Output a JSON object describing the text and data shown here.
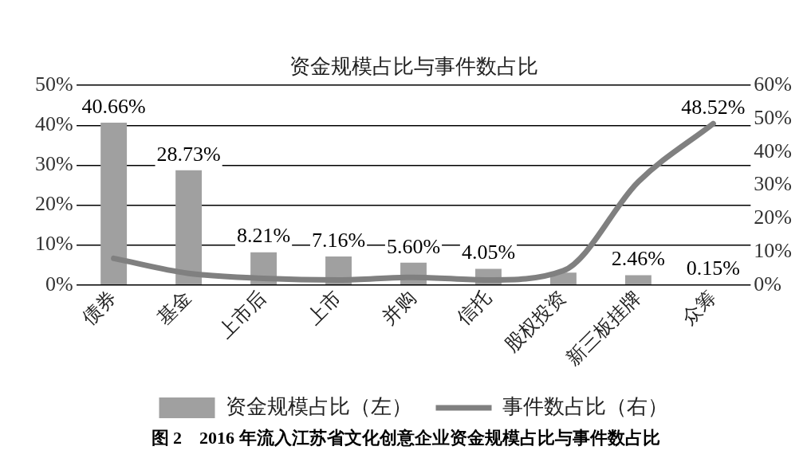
{
  "chart_data": {
    "type": "bar",
    "title": "资金规模占比与事件数占比",
    "categories": [
      "债券",
      "基金",
      "上市后",
      "上市",
      "并购",
      "信托",
      "股权投资",
      "新三板挂牌",
      "众筹"
    ],
    "series": [
      {
        "name": "资金规模占比（左）",
        "color": "#a0a0a0",
        "values": [
          40.66,
          28.73,
          8.21,
          7.16,
          5.6,
          4.05,
          3.1,
          2.46,
          0.15
        ],
        "value_labels": [
          "40.66%",
          "28.73%",
          "8.21%",
          "7.16%",
          "5.60%",
          "4.05%",
          null,
          "2.46%",
          "0.15%"
        ]
      },
      {
        "name": "事件数占比（右）",
        "type": "line",
        "axis": "y2",
        "color": "#808080",
        "values": [
          8,
          3.5,
          2,
          1.5,
          2.3,
          1.5,
          4.3,
          31,
          48.52
        ],
        "value_labels": [
          null,
          null,
          null,
          null,
          null,
          null,
          null,
          null,
          "48.52%"
        ]
      }
    ],
    "ylim": [
      0,
      50
    ],
    "yticks": [
      {
        "value": 0,
        "label": "0%"
      },
      {
        "value": 10,
        "label": "10%"
      },
      {
        "value": 20,
        "label": "20%"
      },
      {
        "value": 30,
        "label": "30%"
      },
      {
        "value": 40,
        "label": "40%"
      },
      {
        "value": 50,
        "label": "50%"
      }
    ],
    "y2lim": [
      0,
      60
    ],
    "y2ticks": [
      {
        "value": 0,
        "label": "0%"
      },
      {
        "value": 10,
        "label": "10%"
      },
      {
        "value": 20,
        "label": "20%"
      },
      {
        "value": 30,
        "label": "30%"
      },
      {
        "value": 40,
        "label": "40%"
      },
      {
        "value": 50,
        "label": "50%"
      },
      {
        "value": 60,
        "label": "60%"
      }
    ],
    "grid": "y",
    "legend": "bottom",
    "marker": "none",
    "line_style": "solid",
    "annotations": [
      "图 2　2016 年流入江苏省文化创意企业资金规模占比与事件数占比"
    ]
  }
}
